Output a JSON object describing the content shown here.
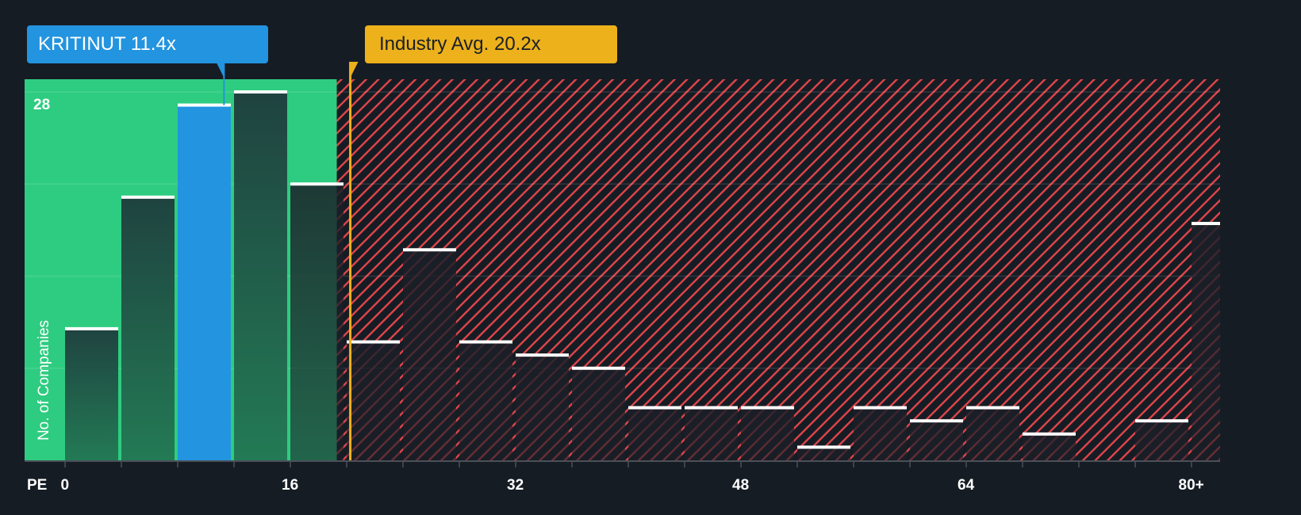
{
  "company_callout": {
    "label": "KRITINUT 11.4x",
    "color": "#2394df"
  },
  "industry_callout": {
    "label": "Industry Avg. 20.2x",
    "color": "#ecb11b"
  },
  "axis": {
    "x_prefix": "PE",
    "x_ticks": [
      "0",
      "16",
      "32",
      "48",
      "64",
      "80+"
    ],
    "y_title": "No. of Companies",
    "y_max_label": "28"
  },
  "colors": {
    "background": "#161c24",
    "undervalued_zone": "#2ecc80",
    "overvalued_hatch": "#e0454a",
    "bar_dark": "#1f4a3e",
    "highlight_bar": "#2394df",
    "bar_cap": "#ffffff"
  },
  "chart_data": {
    "type": "bar",
    "title": "",
    "xlabel": "PE",
    "ylabel": "No. of Companies",
    "bin_width": 4,
    "categories": [
      "0-4",
      "4-8",
      "8-12",
      "12-16",
      "16-20",
      "20-24",
      "24-28",
      "28-32",
      "32-36",
      "36-40",
      "40-44",
      "44-48",
      "48-52",
      "52-56",
      "56-60",
      "60-64",
      "64-68",
      "68-72",
      "72-76",
      "76-80",
      "80+"
    ],
    "values": [
      10,
      20,
      27,
      28,
      21,
      9,
      16,
      9,
      8,
      7,
      4,
      4,
      4,
      1,
      4,
      3,
      4,
      2,
      0,
      3,
      18
    ],
    "highlight_index": 2,
    "company_pe": 11.4,
    "industry_avg_pe": 20.2,
    "ylim": [
      0,
      29
    ],
    "y_gridlines": [
      0,
      7,
      14,
      21,
      28
    ],
    "x_tick_labels": [
      "0",
      "16",
      "32",
      "48",
      "64",
      "80+"
    ],
    "grid": true,
    "legend": "none",
    "annotations": [
      "KRITINUT 11.4x",
      "Industry Avg. 20.2x"
    ]
  }
}
